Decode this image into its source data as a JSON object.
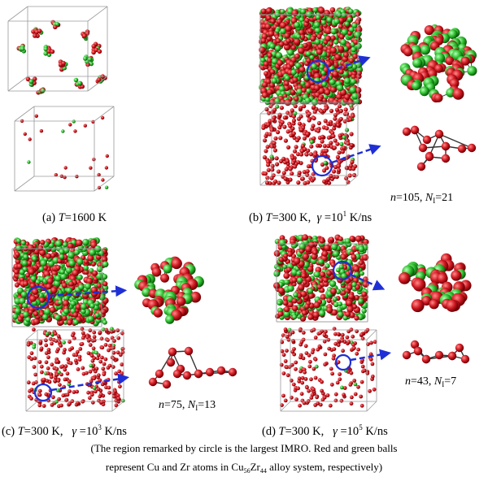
{
  "panels": [
    {
      "id": "a",
      "caption": {
        "pre": "(a) ",
        "var": "T",
        "post": "=1600 K"
      }
    },
    {
      "id": "b",
      "caption": {
        "pre": "(b) ",
        "var": "T",
        "post": "=300 K,  ",
        "gamma": "γ",
        "rate": " =10",
        "exp": "1",
        "unit": " K/ns"
      },
      "cluster_label": {
        "n_var": "n",
        "n_val": "=105, ",
        "N_var": "N",
        "N_sub": "I",
        "N_val": "=21"
      }
    },
    {
      "id": "c",
      "caption": {
        "pre": "(c) ",
        "var": "T",
        "post": "=300 K,   ",
        "gamma": "γ",
        "rate": " =10",
        "exp": "3",
        "unit": " K/ns"
      },
      "cluster_label": {
        "n_var": "n",
        "n_val": "=75, ",
        "N_var": "N",
        "N_sub": "I",
        "N_val": "=13"
      }
    },
    {
      "id": "d",
      "caption": {
        "pre": "(d) ",
        "var": "T",
        "post": "=300 K,   ",
        "gamma": "γ",
        "rate": " =10",
        "exp": "5",
        "unit": " K/ns"
      },
      "cluster_label": {
        "n_var": "n",
        "n_val": "=43, ",
        "N_var": "N",
        "N_sub": "I",
        "N_val": "=7"
      }
    }
  ],
  "footnote": {
    "line1": "(The region remarked by circle is the largest IMRO. Red and green balls",
    "line2_pre": "represent Cu and Zr atoms in Cu",
    "sub1": "56",
    "line2_mid": "Zr",
    "sub2": "44",
    "line2_post": " alloy system, respectively)"
  },
  "colors": {
    "cu": "#c0141c",
    "zr": "#2fbf2f",
    "bond": "#333333",
    "circle": "#1f2fd6",
    "arrow": "#1f2fd6",
    "box_edge": "#9a9a9a"
  }
}
